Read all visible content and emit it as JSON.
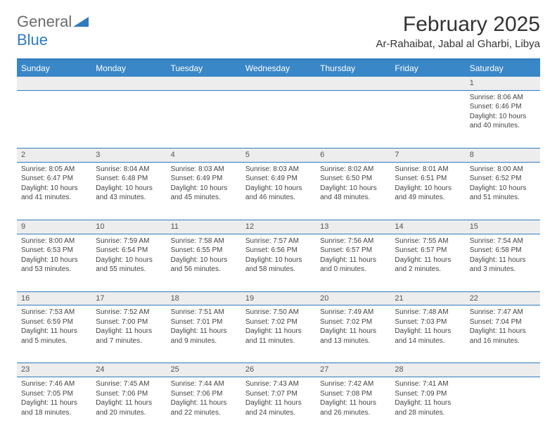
{
  "brand": {
    "part1": "General",
    "part2": "Blue",
    "accent": "#2f7bbf",
    "gray": "#6b6b6b"
  },
  "title": "February 2025",
  "location": "Ar-Rahaibat, Jabal al Gharbi, Libya",
  "header_bg": "#3a87c8",
  "stripe_bg": "#ededed",
  "border_color": "#2f7bbf",
  "text_color": "#444444",
  "day_fontsize": 10,
  "header_fontsize": 12,
  "title_fontsize": 30,
  "daynames": [
    "Sunday",
    "Monday",
    "Tuesday",
    "Wednesday",
    "Thursday",
    "Friday",
    "Saturday"
  ],
  "weeks": [
    [
      null,
      null,
      null,
      null,
      null,
      null,
      {
        "n": "1",
        "sr": "8:06 AM",
        "ss": "6:46 PM",
        "dl": "10 hours and 40 minutes."
      }
    ],
    [
      {
        "n": "2",
        "sr": "8:05 AM",
        "ss": "6:47 PM",
        "dl": "10 hours and 41 minutes."
      },
      {
        "n": "3",
        "sr": "8:04 AM",
        "ss": "6:48 PM",
        "dl": "10 hours and 43 minutes."
      },
      {
        "n": "4",
        "sr": "8:03 AM",
        "ss": "6:49 PM",
        "dl": "10 hours and 45 minutes."
      },
      {
        "n": "5",
        "sr": "8:03 AM",
        "ss": "6:49 PM",
        "dl": "10 hours and 46 minutes."
      },
      {
        "n": "6",
        "sr": "8:02 AM",
        "ss": "6:50 PM",
        "dl": "10 hours and 48 minutes."
      },
      {
        "n": "7",
        "sr": "8:01 AM",
        "ss": "6:51 PM",
        "dl": "10 hours and 49 minutes."
      },
      {
        "n": "8",
        "sr": "8:00 AM",
        "ss": "6:52 PM",
        "dl": "10 hours and 51 minutes."
      }
    ],
    [
      {
        "n": "9",
        "sr": "8:00 AM",
        "ss": "6:53 PM",
        "dl": "10 hours and 53 minutes."
      },
      {
        "n": "10",
        "sr": "7:59 AM",
        "ss": "6:54 PM",
        "dl": "10 hours and 55 minutes."
      },
      {
        "n": "11",
        "sr": "7:58 AM",
        "ss": "6:55 PM",
        "dl": "10 hours and 56 minutes."
      },
      {
        "n": "12",
        "sr": "7:57 AM",
        "ss": "6:56 PM",
        "dl": "10 hours and 58 minutes."
      },
      {
        "n": "13",
        "sr": "7:56 AM",
        "ss": "6:57 PM",
        "dl": "11 hours and 0 minutes."
      },
      {
        "n": "14",
        "sr": "7:55 AM",
        "ss": "6:57 PM",
        "dl": "11 hours and 2 minutes."
      },
      {
        "n": "15",
        "sr": "7:54 AM",
        "ss": "6:58 PM",
        "dl": "11 hours and 3 minutes."
      }
    ],
    [
      {
        "n": "16",
        "sr": "7:53 AM",
        "ss": "6:59 PM",
        "dl": "11 hours and 5 minutes."
      },
      {
        "n": "17",
        "sr": "7:52 AM",
        "ss": "7:00 PM",
        "dl": "11 hours and 7 minutes."
      },
      {
        "n": "18",
        "sr": "7:51 AM",
        "ss": "7:01 PM",
        "dl": "11 hours and 9 minutes."
      },
      {
        "n": "19",
        "sr": "7:50 AM",
        "ss": "7:02 PM",
        "dl": "11 hours and 11 minutes."
      },
      {
        "n": "20",
        "sr": "7:49 AM",
        "ss": "7:02 PM",
        "dl": "11 hours and 13 minutes."
      },
      {
        "n": "21",
        "sr": "7:48 AM",
        "ss": "7:03 PM",
        "dl": "11 hours and 14 minutes."
      },
      {
        "n": "22",
        "sr": "7:47 AM",
        "ss": "7:04 PM",
        "dl": "11 hours and 16 minutes."
      }
    ],
    [
      {
        "n": "23",
        "sr": "7:46 AM",
        "ss": "7:05 PM",
        "dl": "11 hours and 18 minutes."
      },
      {
        "n": "24",
        "sr": "7:45 AM",
        "ss": "7:06 PM",
        "dl": "11 hours and 20 minutes."
      },
      {
        "n": "25",
        "sr": "7:44 AM",
        "ss": "7:06 PM",
        "dl": "11 hours and 22 minutes."
      },
      {
        "n": "26",
        "sr": "7:43 AM",
        "ss": "7:07 PM",
        "dl": "11 hours and 24 minutes."
      },
      {
        "n": "27",
        "sr": "7:42 AM",
        "ss": "7:08 PM",
        "dl": "11 hours and 26 minutes."
      },
      {
        "n": "28",
        "sr": "7:41 AM",
        "ss": "7:09 PM",
        "dl": "11 hours and 28 minutes."
      },
      null
    ]
  ],
  "labels": {
    "sunrise": "Sunrise:",
    "sunset": "Sunset:",
    "daylight": "Daylight:"
  }
}
